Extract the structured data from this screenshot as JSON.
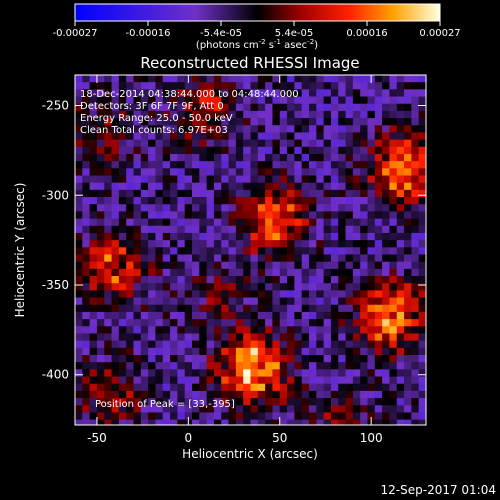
{
  "chart_data": {
    "type": "heatmap",
    "title": "Reconstructed RHESSI Image",
    "xlabel": "Heliocentric X (arcsec)",
    "ylabel": "Heliocentric Y (arcsec)",
    "xlim": [
      -62,
      130
    ],
    "ylim": [
      -428,
      -233
    ],
    "x_ticks": [
      -50,
      0,
      50,
      100
    ],
    "y_ticks": [
      -250,
      -300,
      -350,
      -400
    ],
    "colorbar": {
      "range": [
        -0.00027,
        0.00027
      ],
      "tick_labels": [
        "-0.00027",
        "-0.00016",
        "-5.4e-05",
        "5.4e-05",
        "0.00016",
        "0.00027"
      ],
      "unit_prefix": "(photons cm",
      "unit_sup1": "-2",
      "unit_mid": " s",
      "unit_sup2": "-1",
      "unit_mid2": " asec",
      "unit_sup3": "-2",
      "unit_suffix": ")"
    },
    "annotations": [
      "18-Dec-2014 04:38:44.000 to 04:48:44.000",
      "Detectors: 3F 6F 7F 9F, Att 0",
      "Energy Range: 25.0 - 50.0 keV",
      "Clean     Total counts: 6.97E+03"
    ],
    "peak_label": "Position of Peak = [33,-395]",
    "sources": [
      {
        "x": 33,
        "y": -395,
        "value": 0.00027
      },
      {
        "x": 108,
        "y": -365,
        "value": 0.00025
      },
      {
        "x": 115,
        "y": -283,
        "value": 0.00024
      },
      {
        "x": 45,
        "y": -312,
        "value": 0.00021
      },
      {
        "x": -43,
        "y": -338,
        "value": 0.00018
      },
      {
        "x": 5,
        "y": -250,
        "value": 0.00013
      },
      {
        "x": -45,
        "y": -408,
        "value": 0.00012
      },
      {
        "x": -50,
        "y": -263,
        "value": 9e-05
      },
      {
        "x": 15,
        "y": -355,
        "value": 8e-05
      },
      {
        "x": 80,
        "y": -425,
        "value": 8e-05
      }
    ],
    "footer": "12-Sep-2017 01:04"
  }
}
